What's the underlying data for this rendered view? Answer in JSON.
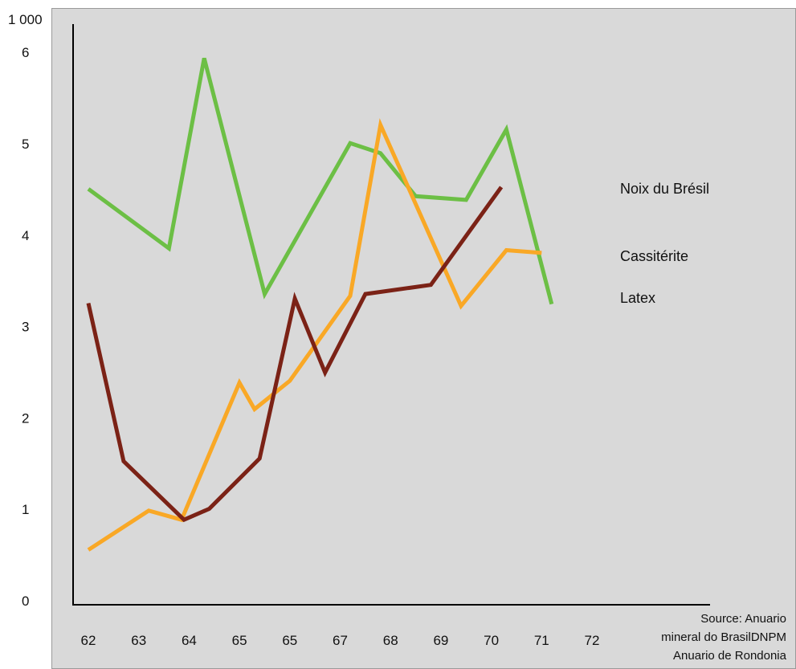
{
  "chart_data": {
    "type": "line",
    "y_unit_label": "1 000",
    "x_tick_labels": [
      "62",
      "63",
      "64",
      "65",
      "65",
      "67",
      "68",
      "69",
      "70",
      "71",
      "72"
    ],
    "y_tick_labels": [
      "0",
      "1",
      "2",
      "3",
      "4",
      "5",
      "6"
    ],
    "ylim": [
      0,
      6.5
    ],
    "grid": false,
    "legend": "right, labels placed beside line ends",
    "series": [
      {
        "name": "Noix du Brésil",
        "color": "#6cbf45",
        "points": [
          {
            "x": 62.0,
            "y": 4.55
          },
          {
            "x": 63.6,
            "y": 3.9
          },
          {
            "x": 64.3,
            "y": 5.98
          },
          {
            "x": 65.5,
            "y": 3.4
          },
          {
            "x": 67.2,
            "y": 5.05
          },
          {
            "x": 67.8,
            "y": 4.94
          },
          {
            "x": 68.5,
            "y": 4.47
          },
          {
            "x": 69.5,
            "y": 4.43
          },
          {
            "x": 70.3,
            "y": 5.2
          },
          {
            "x": 71.2,
            "y": 3.29
          }
        ]
      },
      {
        "name": "Cassitérite",
        "color": "#f9a826",
        "points": [
          {
            "x": 62.0,
            "y": 0.6
          },
          {
            "x": 63.2,
            "y": 1.03
          },
          {
            "x": 63.85,
            "y": 0.93
          },
          {
            "x": 65.0,
            "y": 2.43
          },
          {
            "x": 65.3,
            "y": 2.14
          },
          {
            "x": 66.0,
            "y": 2.45
          },
          {
            "x": 67.2,
            "y": 3.38
          },
          {
            "x": 67.8,
            "y": 5.25
          },
          {
            "x": 69.4,
            "y": 3.27
          },
          {
            "x": 70.3,
            "y": 3.88
          },
          {
            "x": 71.0,
            "y": 3.85
          }
        ]
      },
      {
        "name": "Latex",
        "color": "#7b2216",
        "points": [
          {
            "x": 62.0,
            "y": 3.3
          },
          {
            "x": 62.7,
            "y": 1.57
          },
          {
            "x": 63.9,
            "y": 0.93
          },
          {
            "x": 64.4,
            "y": 1.05
          },
          {
            "x": 65.4,
            "y": 1.6
          },
          {
            "x": 66.1,
            "y": 3.35
          },
          {
            "x": 66.7,
            "y": 2.54
          },
          {
            "x": 67.5,
            "y": 3.4
          },
          {
            "x": 68.8,
            "y": 3.5
          },
          {
            "x": 70.2,
            "y": 4.57
          }
        ]
      }
    ],
    "source_text": [
      "Source: Anuario",
      "mineral do BrasilDNPM",
      "Anuario de Rondonia"
    ]
  }
}
